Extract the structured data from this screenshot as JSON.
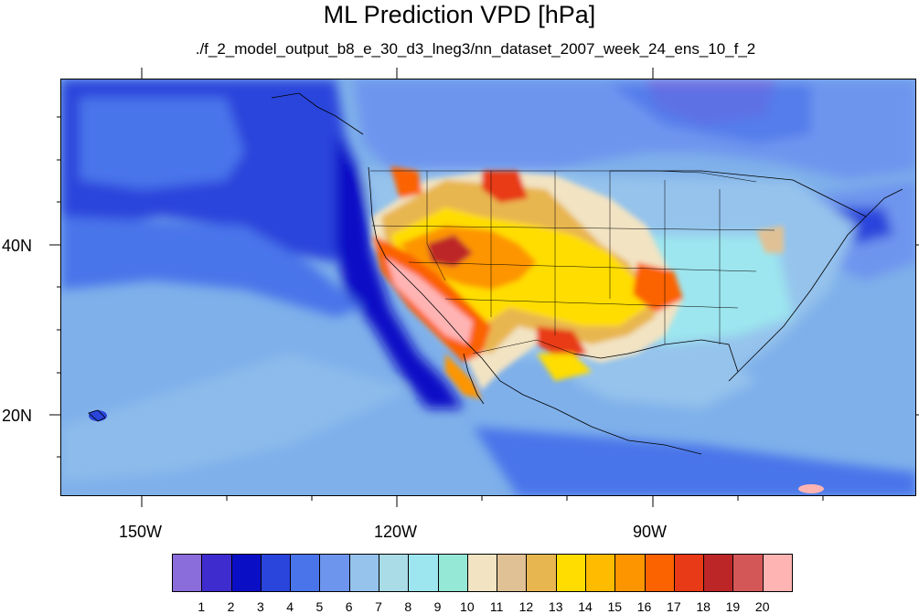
{
  "title": "ML Prediction VPD [hPa]",
  "subtitle": "./f_2_model_output_b8_e_30_d3_lneg3/nn_dataset_2007_week_24_ens_10_f_2",
  "axes": {
    "x_labels": [
      "150W",
      "120W",
      "90W"
    ],
    "y_labels": [
      "40N",
      "20N"
    ]
  },
  "colorbar": {
    "labels": [
      "1",
      "2",
      "3",
      "4",
      "5",
      "6",
      "7",
      "8",
      "9",
      "10",
      "11",
      "12",
      "13",
      "14",
      "15",
      "16",
      "17",
      "18",
      "19",
      "20"
    ],
    "colors": [
      "#8a6ddb",
      "#3f2ccf",
      "#0a0fc6",
      "#2a45dc",
      "#4a74ea",
      "#6e95ee",
      "#95c3ec",
      "#a9dce6",
      "#9de6ef",
      "#95e7d6",
      "#f2e3c2",
      "#e0c195",
      "#e8b650",
      "#ffdd00",
      "#ffbb00",
      "#fd9500",
      "#fb6200",
      "#e83a16",
      "#bd2626",
      "#d45757",
      "#ffb4b4"
    ]
  }
}
